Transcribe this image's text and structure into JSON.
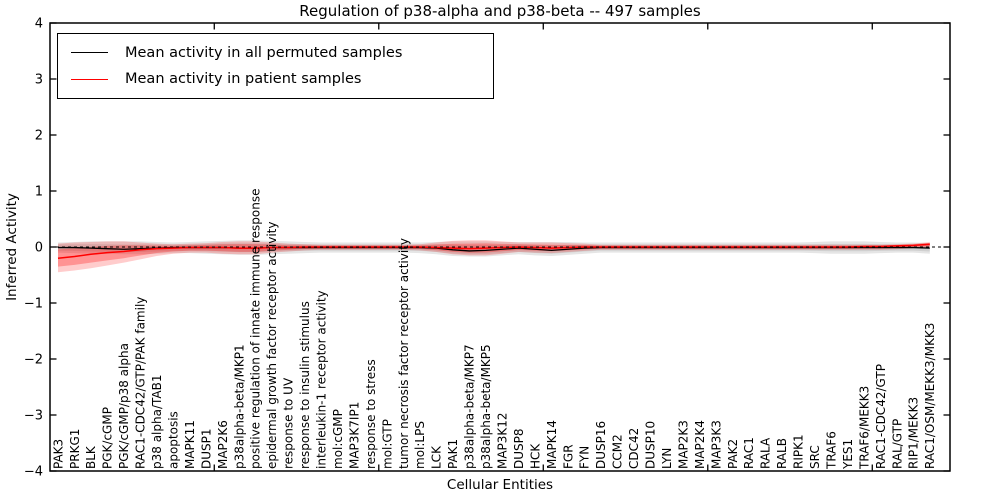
{
  "figure": {
    "title": "Regulation of p38-alpha and p38-beta -- 497 samples",
    "x_axis_label": "Cellular Entities",
    "y_axis_label": "Inferred Activity"
  },
  "legend": {
    "entries": [
      {
        "label": "Mean activity in all permuted samples",
        "color": "#000000"
      },
      {
        "label": "Mean activity in patient samples",
        "color": "#ff0000"
      }
    ]
  },
  "chart_data": {
    "type": "line",
    "title": "Regulation of p38-alpha and p38-beta -- 497 samples",
    "xlabel": "Cellular Entities",
    "ylabel": "Inferred Activity",
    "ylim": [
      -4,
      4
    ],
    "y_ticks": [
      4,
      3,
      2,
      1,
      0,
      -1,
      -2,
      -3,
      -4
    ],
    "y_tick_labels": [
      "4",
      "3",
      "2",
      "1",
      "0",
      "−1",
      "−2",
      "−3",
      "−4"
    ],
    "x_major_tick_positions": [
      9.5,
      19.5,
      29.5,
      39.5,
      49.5
    ],
    "grid": false,
    "legend_position": "upper left",
    "zero_line": {
      "style": "dashed",
      "color": "#000000",
      "y": 0
    },
    "band_inner_scale": 0.6,
    "categories": [
      "PAK3",
      "PRKG1",
      "BLK",
      "PGK/cGMP",
      "PGK/cGMP/p38 alpha",
      "RAC1-CDC42/GTP/PAK family",
      "p38 alpha/TAB1",
      "apoptosis",
      "MAPK11",
      "DUSP1",
      "MAP2K6",
      "p38alpha-beta/MKP1",
      "positive regulation of innate immune response",
      "epidermal growth factor receptor activity",
      "response to UV",
      "response to insulin stimulus",
      "interleukin-1 receptor activity",
      "mol:cGMP",
      "MAP3K7IP1",
      "response to stress",
      "mol:GTP",
      "tumor necrosis factor receptor activity",
      "mol:LPS",
      "LCK",
      "PAK1",
      "p38alpha-beta/MKP7",
      "p38alpha-beta/MKP5",
      "MAP3K12",
      "DUSP8",
      "HCK",
      "MAPK14",
      "FGR",
      "FYN",
      "DUSP16",
      "CCM2",
      "CDC42",
      "DUSP10",
      "LYN",
      "MAP2K3",
      "MAP2K4",
      "MAP3K3",
      "PAK2",
      "RAC1",
      "RALA",
      "RALB",
      "RIPK1",
      "SRC",
      "TRAF6",
      "YES1",
      "TRAF6/MEKK3",
      "RAC1-CDC42/GTP",
      "RAL/GTP",
      "RIP1/MEKK3",
      "RAC1/OSM/MEKK3/MKK3"
    ],
    "series": [
      {
        "name": "Mean activity in all permuted samples",
        "color": "#000000",
        "band_color": "#999999",
        "values": [
          -0.01,
          -0.01,
          -0.02,
          -0.03,
          -0.04,
          -0.03,
          -0.02,
          -0.01,
          -0.01,
          -0.01,
          -0.01,
          -0.02,
          -0.02,
          -0.01,
          -0.01,
          -0.01,
          -0.01,
          -0.01,
          -0.01,
          -0.01,
          -0.01,
          -0.01,
          -0.01,
          -0.02,
          -0.05,
          -0.07,
          -0.06,
          -0.04,
          -0.02,
          -0.04,
          -0.06,
          -0.04,
          -0.02,
          -0.01,
          -0.01,
          -0.01,
          -0.01,
          -0.01,
          -0.01,
          -0.01,
          -0.01,
          -0.01,
          -0.01,
          -0.01,
          -0.01,
          -0.01,
          -0.01,
          -0.01,
          -0.01,
          -0.01,
          -0.01,
          -0.01,
          -0.01,
          -0.02
        ],
        "band_upper": [
          0.08,
          0.09,
          0.1,
          0.1,
          0.1,
          0.1,
          0.09,
          0.08,
          0.09,
          0.1,
          0.11,
          0.12,
          0.12,
          0.11,
          0.1,
          0.09,
          0.08,
          0.08,
          0.08,
          0.08,
          0.08,
          0.08,
          0.08,
          0.09,
          0.1,
          0.1,
          0.1,
          0.09,
          0.09,
          0.09,
          0.09,
          0.09,
          0.08,
          0.08,
          0.08,
          0.08,
          0.08,
          0.08,
          0.08,
          0.08,
          0.08,
          0.08,
          0.08,
          0.08,
          0.08,
          0.08,
          0.09,
          0.1,
          0.1,
          0.1,
          0.09,
          0.08,
          0.08,
          0.07
        ],
        "band_lower": [
          -0.1,
          -0.11,
          -0.12,
          -0.12,
          -0.13,
          -0.13,
          -0.12,
          -0.11,
          -0.11,
          -0.12,
          -0.13,
          -0.14,
          -0.14,
          -0.13,
          -0.12,
          -0.11,
          -0.1,
          -0.1,
          -0.1,
          -0.1,
          -0.1,
          -0.1,
          -0.11,
          -0.13,
          -0.16,
          -0.17,
          -0.17,
          -0.15,
          -0.13,
          -0.15,
          -0.16,
          -0.14,
          -0.12,
          -0.1,
          -0.1,
          -0.1,
          -0.1,
          -0.1,
          -0.1,
          -0.1,
          -0.1,
          -0.1,
          -0.1,
          -0.1,
          -0.1,
          -0.1,
          -0.11,
          -0.12,
          -0.12,
          -0.12,
          -0.11,
          -0.1,
          -0.1,
          -0.12
        ]
      },
      {
        "name": "Mean activity in patient samples",
        "color": "#ff0000",
        "band_color": "#ff0000",
        "values": [
          -0.2,
          -0.17,
          -0.13,
          -0.1,
          -0.08,
          -0.05,
          -0.03,
          -0.02,
          -0.01,
          -0.01,
          -0.01,
          -0.02,
          -0.02,
          -0.01,
          -0.01,
          0,
          0,
          0,
          0,
          0,
          0,
          0,
          0,
          -0.01,
          -0.02,
          -0.03,
          -0.02,
          -0.01,
          0,
          -0.01,
          -0.02,
          -0.01,
          0,
          0,
          0,
          0,
          0,
          0,
          0,
          0,
          0,
          0,
          0,
          0,
          0,
          0,
          0,
          0,
          0,
          0.01,
          0.01,
          0.02,
          0.03,
          0.05
        ],
        "band_upper": [
          0.06,
          0.08,
          0.09,
          0.1,
          0.1,
          0.08,
          0.06,
          0.05,
          0.06,
          0.07,
          0.09,
          0.1,
          0.1,
          0.08,
          0.06,
          0.05,
          0.04,
          0.04,
          0.04,
          0.04,
          0.04,
          0.04,
          0.05,
          0.08,
          0.11,
          0.12,
          0.12,
          0.1,
          0.08,
          0.08,
          0.08,
          0.07,
          0.06,
          0.04,
          0.04,
          0.04,
          0.04,
          0.04,
          0.04,
          0.04,
          0.04,
          0.04,
          0.04,
          0.04,
          0.04,
          0.04,
          0.04,
          0.04,
          0.04,
          0.04,
          0.04,
          0.05,
          0.06,
          0.09
        ],
        "band_lower": [
          -0.45,
          -0.42,
          -0.38,
          -0.33,
          -0.28,
          -0.22,
          -0.16,
          -0.12,
          -0.1,
          -0.1,
          -0.12,
          -0.13,
          -0.13,
          -0.1,
          -0.08,
          -0.06,
          -0.05,
          -0.05,
          -0.05,
          -0.05,
          -0.05,
          -0.05,
          -0.06,
          -0.09,
          -0.13,
          -0.15,
          -0.15,
          -0.12,
          -0.09,
          -0.1,
          -0.11,
          -0.09,
          -0.07,
          -0.05,
          -0.05,
          -0.05,
          -0.05,
          -0.05,
          -0.05,
          -0.05,
          -0.05,
          -0.05,
          -0.05,
          -0.05,
          -0.05,
          -0.05,
          -0.05,
          -0.05,
          -0.05,
          -0.05,
          -0.05,
          -0.04,
          -0.02,
          -0.01
        ]
      }
    ]
  }
}
